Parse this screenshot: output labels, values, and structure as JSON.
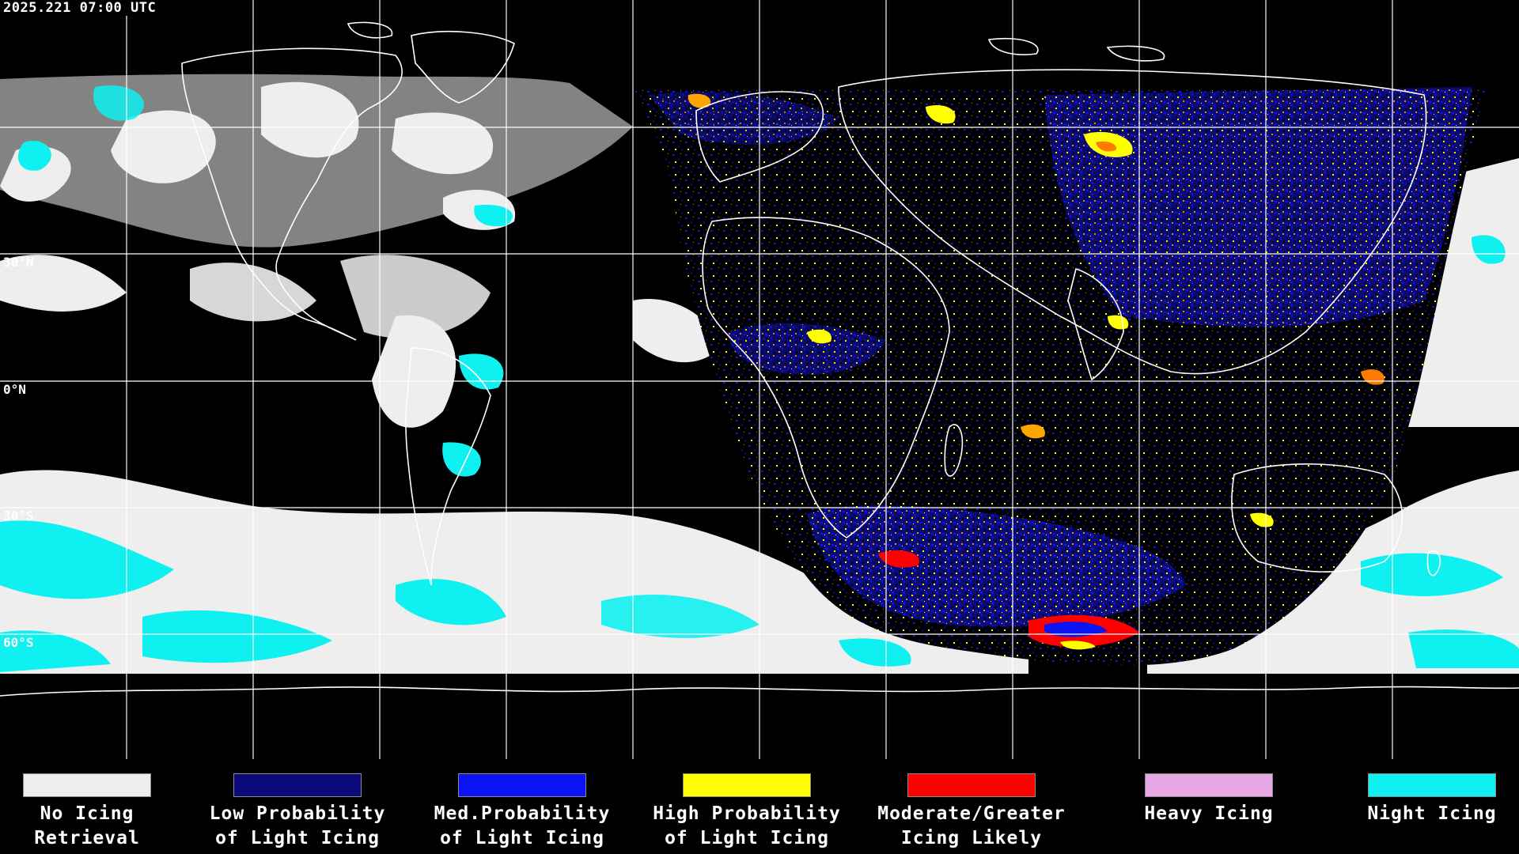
{
  "header": {
    "timestamp": "2025.221 07:00 UTC"
  },
  "map": {
    "projection": "equirectangular",
    "lat_labels": [
      {
        "id": "30n",
        "text": "30°N"
      },
      {
        "id": "0n",
        "text": "0°N"
      },
      {
        "id": "30s",
        "text": "30°S"
      },
      {
        "id": "60s",
        "text": "60°S"
      }
    ],
    "colors": {
      "background": "#000000",
      "coastline": "#ffffff",
      "gridline": "#ffffff"
    }
  },
  "legend": {
    "items": [
      {
        "key": "no-icing",
        "line1": "No Icing",
        "line2": "Retrieval",
        "color": "#eeeeee"
      },
      {
        "key": "low-prob",
        "line1": "Low Probability",
        "line2": "of Light Icing",
        "color": "#0a0a78"
      },
      {
        "key": "med-prob",
        "line1": "Med.Probability",
        "line2": "of Light Icing",
        "color": "#0a14f5"
      },
      {
        "key": "high-prob",
        "line1": "High Probability",
        "line2": "of Light Icing",
        "color": "#ffff00"
      },
      {
        "key": "moderate",
        "line1": "Moderate/Greater",
        "line2": "Icing Likely",
        "color": "#ff0000"
      },
      {
        "key": "heavy",
        "line1": "Heavy Icing",
        "line2": "",
        "color": "#e8a8e6"
      },
      {
        "key": "night",
        "line1": "Night Icing",
        "line2": "",
        "color": "#0ff0f0"
      }
    ]
  }
}
